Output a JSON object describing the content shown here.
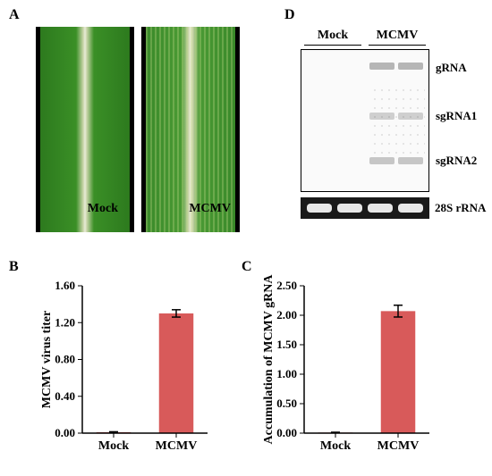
{
  "labels": {
    "A": "A",
    "B": "B",
    "C": "C",
    "D": "D"
  },
  "panelA": {
    "mock_label": "Mock",
    "mcmv_label": "MCMV",
    "mock_leaf_color": "#3a8f26",
    "mcmv_leaf_color": "#4a9a34",
    "background": "#000000"
  },
  "panelD": {
    "header_mock": "Mock",
    "header_mcmv": "MCMV",
    "band_labels": {
      "grna": "gRNA",
      "sgrna1": "sgRNA1",
      "sgrna2": "sgRNA2",
      "loading": "28S rRNA"
    },
    "blot_border": "#000000",
    "blot_bg": "#fafafa",
    "loading_bg": "#1a1a1a",
    "loading_band_color": "#e8e8e8"
  },
  "chartB": {
    "type": "bar",
    "ylabel": "MCMV virus titer",
    "categories": [
      "Mock",
      "MCMV"
    ],
    "values": [
      0.01,
      1.3
    ],
    "errors": [
      0.005,
      0.04
    ],
    "bar_colors": [
      "#d85a5a",
      "#d85a5a"
    ],
    "ylim": [
      0,
      1.6
    ],
    "ytick_step": 0.4,
    "decimals": 2,
    "bar_width": 0.55,
    "axis_color": "#000000",
    "label_fontsize": 13,
    "title_fontsize": 14
  },
  "chartC": {
    "type": "bar",
    "ylabel": "Accumulation of MCMV gRNA",
    "categories": [
      "Mock",
      "MCMV"
    ],
    "values": [
      0.01,
      2.07
    ],
    "errors": [
      0.005,
      0.1
    ],
    "bar_colors": [
      "#d85a5a",
      "#d85a5a"
    ],
    "ylim": [
      0,
      2.5
    ],
    "ytick_step": 0.5,
    "decimals": 2,
    "bar_width": 0.55,
    "axis_color": "#000000",
    "label_fontsize": 13,
    "title_fontsize": 14
  }
}
